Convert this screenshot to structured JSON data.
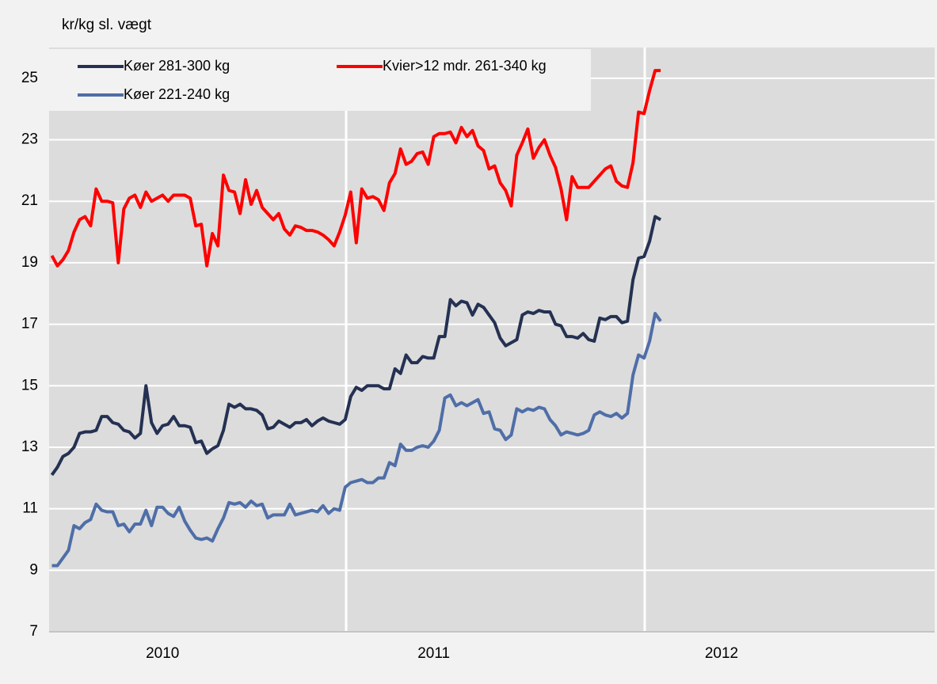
{
  "chart_data": {
    "type": "line",
    "title": "kr/kg sl. vægt",
    "categories": [
      null,
      null,
      null,
      null,
      null,
      null,
      null,
      null,
      null,
      null,
      null,
      null,
      null,
      null,
      null,
      null,
      null,
      null,
      null,
      null,
      "2010",
      null,
      null,
      null,
      null,
      null,
      null,
      null,
      null,
      null,
      null,
      null,
      null,
      null,
      null,
      null,
      null,
      null,
      null,
      null,
      null,
      null,
      null,
      null,
      null,
      null,
      null,
      null,
      null,
      null,
      null,
      null,
      null,
      null,
      null,
      null,
      null,
      null,
      null,
      null,
      null,
      null,
      null,
      null,
      null,
      null,
      null,
      null,
      null,
      "2011",
      null,
      null,
      null,
      null,
      null,
      null,
      null,
      null,
      null,
      null,
      null,
      null,
      null,
      null,
      null,
      null,
      null,
      null,
      null,
      null,
      null,
      null,
      null,
      null,
      null,
      null,
      null,
      null,
      null,
      null,
      null,
      null,
      null,
      null,
      null,
      null,
      null,
      null,
      null,
      null,
      null,
      null,
      null,
      null,
      null,
      null,
      null,
      null,
      null,
      null,
      null,
      "2012",
      null,
      null,
      null,
      null,
      null,
      null,
      null,
      null,
      null,
      null,
      null,
      null,
      null,
      null,
      null,
      null,
      null,
      null,
      null,
      null,
      null,
      null,
      null,
      null,
      null,
      null,
      null,
      null,
      null,
      null,
      null,
      null,
      null,
      null,
      null,
      null,
      null,
      null
    ],
    "series": [
      {
        "name": "Køer 281-300 kg",
        "color": "#243152",
        "values": [
          12.1,
          12.35,
          12.7,
          12.8,
          13.0,
          13.45,
          13.5,
          13.5,
          13.55,
          14.0,
          14.0,
          13.8,
          13.75,
          13.55,
          13.5,
          13.3,
          13.45,
          15.0,
          13.8,
          13.45,
          13.7,
          13.75,
          14.0,
          13.7,
          13.7,
          13.65,
          13.15,
          13.2,
          12.8,
          12.95,
          13.05,
          13.55,
          14.4,
          14.3,
          14.4,
          14.25,
          14.25,
          14.2,
          14.05,
          13.6,
          13.65,
          13.85,
          13.75,
          13.65,
          13.8,
          13.8,
          13.9,
          13.7,
          13.85,
          13.95,
          13.85,
          13.8,
          13.75,
          13.9,
          14.65,
          14.95,
          14.85,
          15.0,
          15.0,
          15.0,
          14.9,
          14.9,
          15.55,
          15.4,
          16.0,
          15.75,
          15.75,
          15.95,
          15.9,
          15.9,
          16.6,
          16.6,
          17.8,
          17.6,
          17.75,
          17.7,
          17.3,
          17.65,
          17.55,
          17.3,
          17.05,
          16.55,
          16.3,
          16.4,
          16.5,
          17.3,
          17.4,
          17.35,
          17.45,
          17.4,
          17.4,
          17.0,
          16.95,
          16.6,
          16.6,
          16.55,
          16.7,
          16.5,
          16.45,
          17.2,
          17.15,
          17.25,
          17.25,
          17.05,
          17.1,
          18.45,
          19.15,
          19.2,
          19.7,
          20.5,
          20.4,
          null,
          null,
          null,
          null,
          null,
          null,
          null,
          null,
          null,
          null,
          null,
          null,
          null,
          null,
          null,
          null,
          null,
          null,
          null,
          null,
          null,
          null,
          null,
          null,
          null,
          null,
          null,
          null,
          null,
          null,
          null,
          null,
          null,
          null,
          null,
          null,
          null,
          null,
          null,
          null,
          null,
          null,
          null,
          null,
          null,
          null,
          null,
          null,
          null
        ]
      },
      {
        "name": "Kvier>12 mdr. 261-340 kg",
        "color": "#ff0000",
        "values": [
          19.23,
          18.9,
          19.1,
          19.4,
          20.0,
          20.4,
          20.5,
          20.2,
          21.4,
          21.0,
          21.0,
          20.95,
          19.0,
          20.75,
          21.1,
          21.2,
          20.8,
          21.3,
          21.0,
          21.1,
          21.2,
          21.0,
          21.2,
          21.2,
          21.2,
          21.1,
          20.2,
          20.25,
          18.9,
          19.95,
          19.55,
          21.85,
          21.35,
          21.3,
          20.6,
          21.7,
          20.9,
          21.35,
          20.8,
          20.6,
          20.4,
          20.6,
          20.1,
          19.9,
          20.2,
          20.15,
          20.05,
          20.05,
          20.0,
          19.9,
          19.75,
          19.55,
          20.0,
          20.55,
          21.3,
          19.65,
          21.4,
          21.1,
          21.15,
          21.05,
          20.7,
          21.6,
          21.9,
          22.7,
          22.2,
          22.3,
          22.55,
          22.6,
          22.2,
          23.1,
          23.2,
          23.2,
          23.25,
          22.9,
          23.4,
          23.1,
          23.3,
          22.8,
          22.65,
          22.05,
          22.15,
          21.6,
          21.35,
          20.85,
          22.5,
          22.9,
          23.35,
          22.4,
          22.75,
          23.0,
          22.5,
          22.1,
          21.4,
          20.4,
          21.8,
          21.45,
          21.45,
          21.45,
          21.65,
          21.85,
          22.05,
          22.15,
          21.65,
          21.5,
          21.45,
          22.25,
          23.9,
          23.85,
          24.6,
          25.25,
          25.25,
          null,
          null,
          null,
          null,
          null,
          null,
          null,
          null,
          null,
          null,
          null,
          null,
          null,
          null,
          null,
          null,
          null,
          null,
          null,
          null,
          null,
          null,
          null,
          null,
          null,
          null,
          null,
          null,
          null,
          null,
          null,
          null,
          null,
          null,
          null,
          null,
          null,
          null,
          null,
          null,
          null,
          null,
          null,
          null,
          null,
          null,
          null,
          null,
          null
        ]
      },
      {
        "name": "Køer 221-240 kg",
        "color": "#4f6ea8",
        "values": [
          9.15,
          9.15,
          9.4,
          9.65,
          10.45,
          10.35,
          10.55,
          10.65,
          11.15,
          10.95,
          10.9,
          10.9,
          10.45,
          10.5,
          10.25,
          10.5,
          10.5,
          10.95,
          10.45,
          11.05,
          11.05,
          10.85,
          10.75,
          11.05,
          10.6,
          10.3,
          10.05,
          10.0,
          10.05,
          9.95,
          10.35,
          10.7,
          11.2,
          11.15,
          11.2,
          11.05,
          11.25,
          11.1,
          11.15,
          10.7,
          10.8,
          10.8,
          10.8,
          11.15,
          10.8,
          10.85,
          10.9,
          10.95,
          10.9,
          11.1,
          10.85,
          11.0,
          10.95,
          11.7,
          11.85,
          11.9,
          11.95,
          11.85,
          11.85,
          12.0,
          12.0,
          12.5,
          12.4,
          13.1,
          12.9,
          12.9,
          13.0,
          13.05,
          13.0,
          13.2,
          13.55,
          14.6,
          14.7,
          14.35,
          14.45,
          14.35,
          14.45,
          14.55,
          14.1,
          14.15,
          13.6,
          13.55,
          13.25,
          13.4,
          14.25,
          14.15,
          14.25,
          14.2,
          14.3,
          14.25,
          13.9,
          13.7,
          13.4,
          13.5,
          13.45,
          13.4,
          13.45,
          13.55,
          14.05,
          14.15,
          14.05,
          14.0,
          14.1,
          13.95,
          14.1,
          15.35,
          16.0,
          15.9,
          16.45,
          17.35,
          17.1,
          null,
          null,
          null,
          null,
          null,
          null,
          null,
          null,
          null,
          null,
          null,
          null,
          null,
          null,
          null,
          null,
          null,
          null,
          null,
          null,
          null,
          null,
          null,
          null,
          null,
          null,
          null,
          null,
          null,
          null,
          null,
          null,
          null,
          null,
          null,
          null,
          null,
          null,
          null,
          null,
          null,
          null,
          null,
          null,
          null,
          null,
          null,
          null,
          null
        ]
      }
    ],
    "ylim": [
      7,
      26
    ],
    "yticks": [
      7,
      9,
      11,
      13,
      15,
      17,
      19,
      21,
      23,
      25
    ],
    "grid": true,
    "legend": "top-left"
  }
}
